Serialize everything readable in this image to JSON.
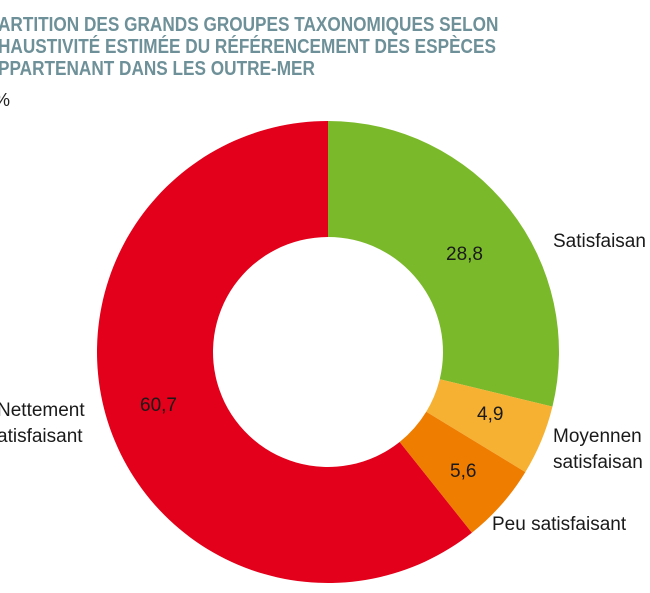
{
  "chart_data": {
    "type": "pie",
    "variant": "donut",
    "title_lines": [
      "ARTITION DES GRANDS GROUPES TAXONOMIQUES SELON",
      "HAUSTIVITÉ ESTIMÉE DU RÉFÉRENCEMENT DES ESPÈCES",
      "PPARTENANT DANS LES OUTRE-MER"
    ],
    "unit": "%",
    "slices": [
      {
        "label_lines": [
          "Satisfaisan"
        ],
        "value": 28.8,
        "value_label": "28,8",
        "color": "#7ab929"
      },
      {
        "label_lines": [
          "Moyennen",
          "satisfaisan"
        ],
        "value": 4.9,
        "value_label": "4,9",
        "color": "#f6b133"
      },
      {
        "label_lines": [
          "Peu satisfaisant"
        ],
        "value": 5.6,
        "value_label": "5,6",
        "color": "#ee7d00"
      },
      {
        "label_lines": [
          "Nettement",
          "atisfaisant"
        ],
        "value": 60.7,
        "value_label": "60,7",
        "color": "#e2001a"
      }
    ]
  }
}
